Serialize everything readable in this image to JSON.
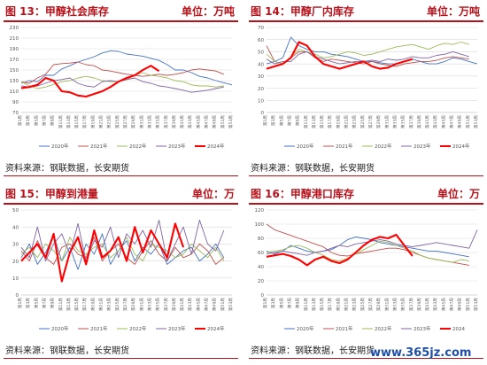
{
  "watermark": "www.365jz.com",
  "legend_years": [
    "2020年",
    "2021年",
    "2022年",
    "2023年",
    "2024年"
  ],
  "legend_years_p3": [
    "2020年",
    "2021年",
    "2022年",
    "2023年",
    "2024年"
  ],
  "legend_years_p4": [
    "2020年",
    "2021年",
    "2022年",
    "2023年",
    "2024"
  ],
  "series_colors": [
    "#4472c4",
    "#c0504d",
    "#9bbb59",
    "#8064a2",
    "#ff0000"
  ],
  "panels": [
    {
      "title": "图 13：甲醇社会库存",
      "unit": "单位：万吨",
      "source": "资料来源：钢联数据，长安期货"
    },
    {
      "title": "图 14：甲醇厂内库存",
      "unit": "单位：万吨",
      "source": "资料来源：钢联数据，长安期货"
    },
    {
      "title": "图 15：甲醇到港量",
      "unit": "单位：万",
      "source": "资料来源：钢联数据，长安期货"
    },
    {
      "title": "图 16：甲醇港口库存",
      "unit": "单位：万",
      "source": "资料来源：钢联数据，长安期货"
    }
  ],
  "chart_data": [
    {
      "type": "line",
      "yticks": [
        70,
        90,
        110,
        130,
        150,
        170,
        190,
        210,
        230
      ],
      "ylim": [
        70,
        230
      ],
      "x": [
        "第1周",
        "第3周",
        "第5周",
        "第7周",
        "第9周",
        "第11周",
        "第13周",
        "第15周",
        "第17周",
        "第19周",
        "第21周",
        "第23周",
        "第25周",
        "第27周",
        "第29周",
        "第31周",
        "第33周",
        "第35周",
        "第37周",
        "第39周",
        "第41周",
        "第43周",
        "第45周",
        "第47周",
        "第49周",
        "第51周",
        "第53周"
      ],
      "series": [
        {
          "name": "2020年",
          "values": [
            125,
            130,
            128,
            140,
            140,
            152,
            158,
            165,
            170,
            175,
            182,
            186,
            185,
            180,
            178,
            176,
            172,
            168,
            160,
            150,
            150,
            145,
            138,
            135,
            130,
            126,
            122
          ]
        },
        {
          "name": "2021年",
          "values": [
            128,
            125,
            135,
            142,
            160,
            162,
            163,
            165,
            160,
            158,
            150,
            148,
            145,
            142,
            140,
            138,
            140,
            142,
            140,
            142,
            145,
            150,
            152,
            150,
            148,
            142,
            null
          ]
        },
        {
          "name": "2022年",
          "values": [
            128,
            120,
            115,
            118,
            123,
            128,
            130,
            135,
            138,
            135,
            130,
            128,
            128,
            132,
            140,
            145,
            140,
            138,
            135,
            130,
            128,
            122,
            120,
            120,
            118,
            120,
            null
          ]
        },
        {
          "name": "2023年",
          "values": [
            120,
            118,
            120,
            125,
            130,
            132,
            135,
            125,
            120,
            118,
            128,
            130,
            128,
            132,
            135,
            128,
            125,
            120,
            118,
            115,
            112,
            108,
            110,
            112,
            115,
            118,
            null
          ]
        },
        {
          "name": "2024年",
          "values": [
            116,
            118,
            122,
            135,
            130,
            110,
            108,
            102,
            100,
            105,
            110,
            118,
            128,
            135,
            140,
            150,
            158,
            148,
            null,
            null,
            null,
            null,
            null,
            null,
            null,
            null,
            null
          ]
        }
      ]
    },
    {
      "type": "line",
      "yticks": [
        0,
        10,
        20,
        30,
        40,
        50,
        60,
        70
      ],
      "ylim": [
        0,
        70
      ],
      "x": [
        "第1周",
        "第3周",
        "第5周",
        "第7周",
        "第9周",
        "第11周",
        "第13周",
        "第15周",
        "第17周",
        "第19周",
        "第21周",
        "第23周",
        "第25周",
        "第27周",
        "第29周",
        "第31周",
        "第33周",
        "第35周",
        "第37周",
        "第39周",
        "第41周",
        "第43周",
        "第45周",
        "第47周",
        "第49周",
        "第51周",
        "第53周"
      ],
      "series": [
        {
          "name": "2020年",
          "values": [
            40,
            42,
            45,
            62,
            55,
            52,
            50,
            50,
            48,
            47,
            46,
            44,
            42,
            42,
            41,
            40,
            40,
            42,
            44,
            42,
            40,
            40,
            42,
            45,
            44,
            42,
            40
          ]
        },
        {
          "name": "2021年",
          "values": [
            55,
            42,
            40,
            45,
            50,
            50,
            45,
            42,
            44,
            43,
            42,
            41,
            40,
            42,
            40,
            39,
            38,
            40,
            41,
            42,
            42,
            43,
            45,
            46,
            45,
            44,
            null
          ]
        },
        {
          "name": "2022年",
          "values": [
            48,
            42,
            40,
            46,
            52,
            50,
            48,
            45,
            46,
            48,
            50,
            49,
            47,
            48,
            50,
            52,
            54,
            55,
            56,
            54,
            52,
            55,
            57,
            56,
            58,
            56,
            null
          ]
        },
        {
          "name": "2023年",
          "values": [
            44,
            40,
            42,
            42,
            48,
            50,
            46,
            44,
            42,
            40,
            41,
            42,
            42,
            43,
            42,
            44,
            43,
            44,
            46,
            45,
            45,
            47,
            48,
            50,
            48,
            46,
            null
          ]
        },
        {
          "name": "2024年",
          "values": [
            36,
            38,
            40,
            45,
            58,
            55,
            46,
            40,
            38,
            36,
            38,
            40,
            42,
            38,
            36,
            37,
            40,
            42,
            44,
            null,
            null,
            null,
            null,
            null,
            null,
            null,
            null
          ]
        }
      ]
    },
    {
      "type": "line",
      "yticks": [
        0,
        10,
        20,
        30,
        40,
        50
      ],
      "ylim": [
        0,
        50
      ],
      "x": [
        "第1周",
        "第3周",
        "第5周",
        "第7周",
        "第9周",
        "第11周",
        "第13周",
        "第15周",
        "第17周",
        "第19周",
        "第21周",
        "第23周",
        "第25周",
        "第27周",
        "第29周",
        "第31周",
        "第33周",
        "第35周",
        "第37周",
        "第39周",
        "第41周",
        "第43周",
        "第45周",
        "第47周",
        "第49周",
        "第51周",
        "第53周"
      ],
      "series": [
        {
          "name": "2020年",
          "values": [
            22,
            30,
            18,
            25,
            35,
            20,
            28,
            15,
            30,
            24,
            36,
            18,
            26,
            32,
            20,
            28,
            24,
            30,
            18,
            22,
            26,
            28,
            20,
            24,
            30,
            22,
            null
          ]
        },
        {
          "name": "2021年",
          "values": [
            26,
            20,
            32,
            22,
            18,
            28,
            30,
            24,
            22,
            34,
            20,
            26,
            30,
            22,
            18,
            26,
            32,
            24,
            20,
            28,
            22,
            24,
            30,
            26,
            18,
            22,
            null
          ]
        },
        {
          "name": "2022年",
          "values": [
            24,
            28,
            22,
            30,
            26,
            20,
            34,
            26,
            24,
            28,
            30,
            22,
            26,
            34,
            24,
            20,
            30,
            28,
            26,
            22,
            24,
            30,
            26,
            22,
            28,
            20,
            null
          ]
        },
        {
          "name": "2023年",
          "values": [
            28,
            22,
            40,
            20,
            30,
            36,
            24,
            42,
            20,
            32,
            28,
            40,
            22,
            36,
            30,
            38,
            28,
            44,
            20,
            30,
            40,
            24,
            44,
            30,
            26,
            38,
            null
          ]
        },
        {
          "name": "2024年",
          "values": [
            20,
            25,
            30,
            22,
            36,
            8,
            25,
            34,
            18,
            38,
            22,
            26,
            34,
            20,
            40,
            25,
            38,
            30,
            22,
            42,
            28,
            null,
            null,
            null,
            null,
            null,
            null
          ]
        }
      ]
    },
    {
      "type": "line",
      "yticks": [
        0,
        20,
        40,
        60,
        80,
        100,
        120
      ],
      "ylim": [
        0,
        120
      ],
      "x": [
        "第1周",
        "第3周",
        "第5周",
        "第7周",
        "第9周",
        "第11周",
        "第13周",
        "第15周",
        "第17周",
        "第19周",
        "第21周",
        "第23周",
        "第25周",
        "第27周",
        "第29周",
        "第31周",
        "第33周",
        "第35周",
        "第37周",
        "第39周",
        "第41周",
        "第43周",
        "第45周",
        "第47周",
        "第49周",
        "第51周",
        "第53周"
      ],
      "series": [
        {
          "name": "2020年",
          "values": [
            62,
            58,
            62,
            70,
            66,
            62,
            60,
            62,
            64,
            70,
            78,
            82,
            80,
            78,
            74,
            72,
            70,
            68,
            66,
            64,
            62,
            62,
            60,
            58,
            56,
            54,
            null
          ]
        },
        {
          "name": "2021年",
          "values": [
            100,
            92,
            88,
            84,
            80,
            76,
            72,
            68,
            60,
            56,
            55,
            58,
            60,
            62,
            64,
            66,
            66,
            64,
            60,
            56,
            52,
            50,
            48,
            46,
            44,
            42,
            null
          ]
        },
        {
          "name": "2022年",
          "values": [
            60,
            62,
            64,
            68,
            70,
            66,
            60,
            56,
            50,
            48,
            52,
            58,
            64,
            70,
            76,
            74,
            70,
            66,
            62,
            56,
            52,
            50,
            48,
            46,
            50,
            48,
            null
          ]
        },
        {
          "name": "2023年",
          "values": [
            58,
            60,
            62,
            60,
            58,
            56,
            60,
            62,
            66,
            70,
            68,
            72,
            74,
            76,
            78,
            76,
            72,
            70,
            68,
            70,
            72,
            74,
            72,
            70,
            68,
            66,
            92
          ]
        },
        {
          "name": "2024",
          "values": [
            54,
            56,
            58,
            55,
            50,
            42,
            50,
            54,
            48,
            45,
            50,
            60,
            70,
            78,
            82,
            80,
            85,
            70,
            55,
            null,
            null,
            null,
            null,
            null,
            null,
            null,
            null
          ]
        }
      ]
    }
  ]
}
